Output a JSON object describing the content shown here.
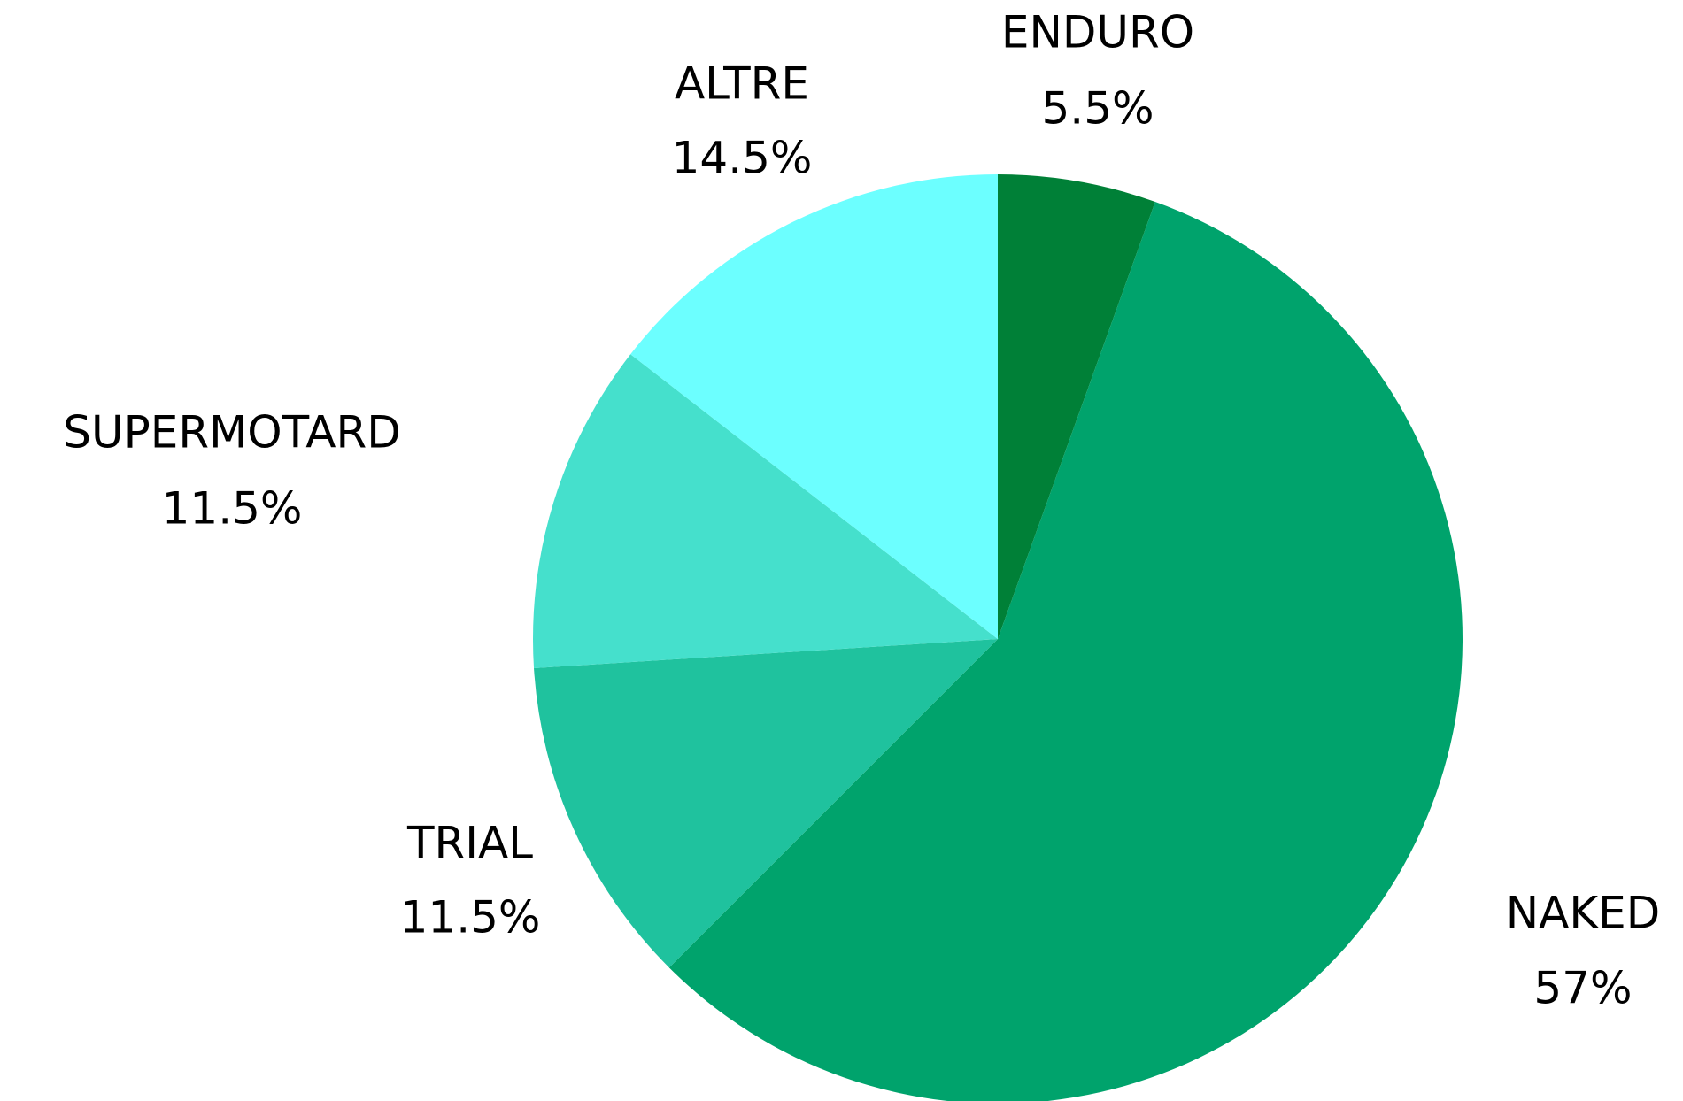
{
  "chart_data": {
    "type": "pie",
    "categories": [
      "ENDURO",
      "NAKED",
      "TRIAL",
      "SUPERMOTARD",
      "ALTRE"
    ],
    "values": [
      5.5,
      57,
      11.5,
      11.5,
      14.5
    ],
    "value_labels": [
      "5.5%",
      "57%",
      "11.5%",
      "11.5%",
      "14.5%"
    ],
    "colors": [
      "#008037",
      "#00a36c",
      "#1fc29e",
      "#45e0cc",
      "#6cffff"
    ]
  }
}
